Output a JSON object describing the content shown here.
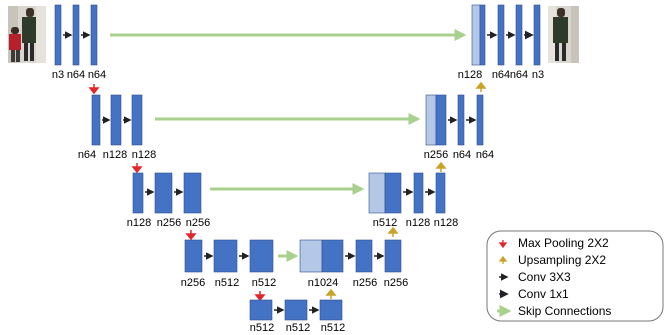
{
  "colors": {
    "conv_block": "#4472C4",
    "conv_block_edge": "#2F528F",
    "concat_block": "#B4C7E7",
    "skip": "#A9D18E",
    "max_pool": "#E3262A",
    "upsample": "#C9A227",
    "conv3": "#222222",
    "conv1": "#7030A0",
    "legend_border": "#777777",
    "photo_bg": "#D9D6CF"
  },
  "labels": {
    "l1_left": [
      "n3",
      "n64",
      "n64"
    ],
    "l1_right": [
      "n128",
      "n64",
      "n64",
      "n3"
    ],
    "l2_left": [
      "n64",
      "n128",
      "n128"
    ],
    "l2_right": [
      "n256",
      "n64",
      "n64"
    ],
    "l3_left": [
      "n128",
      "n256",
      "n256"
    ],
    "l3_right": [
      "n512",
      "n128",
      "n128"
    ],
    "l4_left": [
      "n256",
      "n512",
      "n512"
    ],
    "l4_right": [
      "n1024",
      "n256",
      "n256"
    ],
    "l5": [
      "n512",
      "n512",
      "n512"
    ]
  },
  "legend": {
    "items": [
      {
        "label": "Max Pooling 2X2",
        "icon": "max-pool-arrow"
      },
      {
        "label": "Upsampling 2X2",
        "icon": "upsample-arrow"
      },
      {
        "label": "Conv 3X3",
        "icon": "conv3x3-arrow"
      },
      {
        "label": "Conv 1x1",
        "icon": "conv1x1-arrow"
      },
      {
        "label": "Skip Connections",
        "icon": "skip-connection-arrow"
      }
    ]
  }
}
